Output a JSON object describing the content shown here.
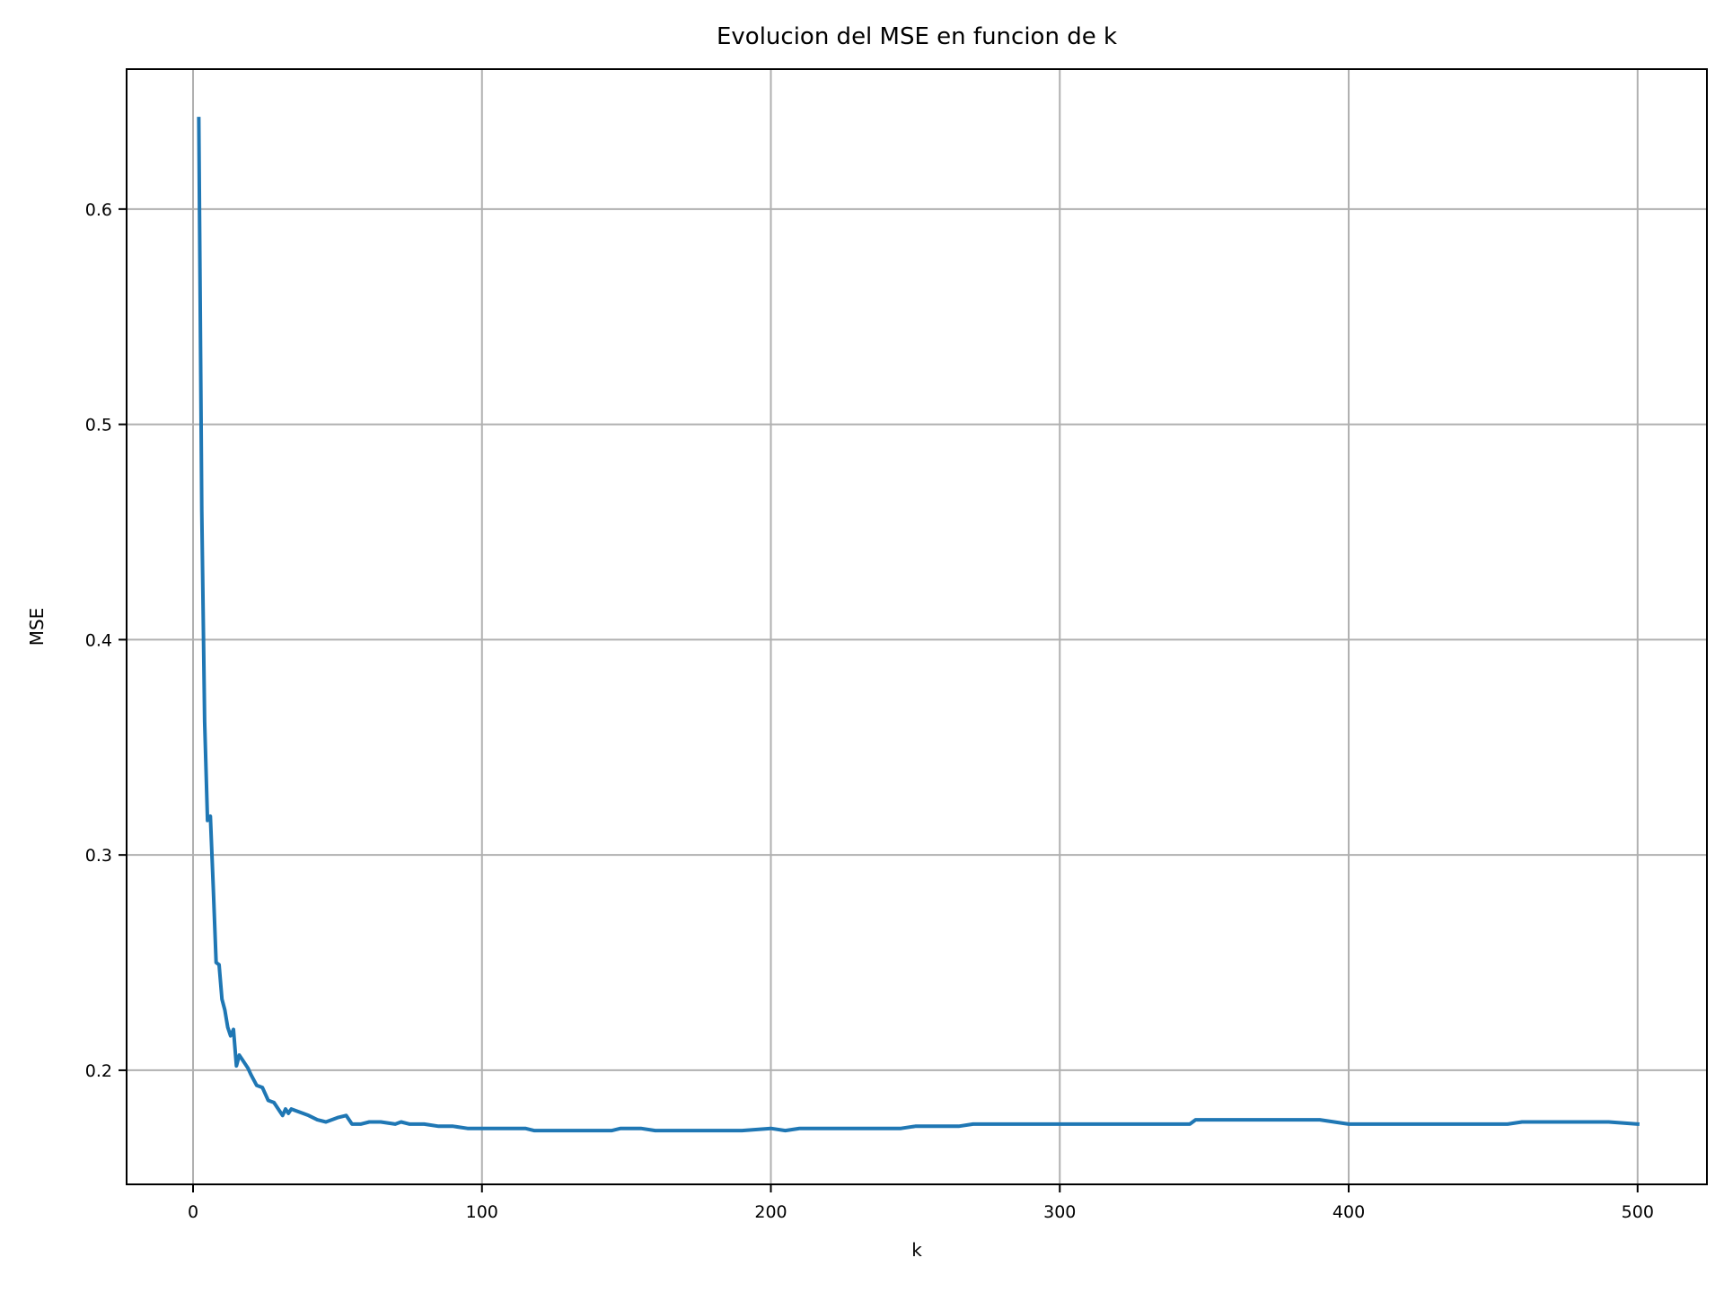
{
  "chart_data": {
    "type": "line",
    "title": "Evolucion del MSE en funcion de k",
    "xlabel": "k",
    "ylabel": "MSE",
    "xlim": [
      -23,
      524
    ],
    "ylim": [
      0.147,
      0.665
    ],
    "xticks": [
      0,
      100,
      200,
      300,
      400,
      500
    ],
    "yticks": [
      0.2,
      0.3,
      0.4,
      0.5,
      0.6
    ],
    "xtick_labels": [
      "0",
      "100",
      "200",
      "300",
      "400",
      "500"
    ],
    "ytick_labels": [
      "0.2",
      "0.3",
      "0.4",
      "0.5",
      "0.6"
    ],
    "grid": true,
    "legend": "none",
    "line_color": "#1f77b4",
    "grid_color": "#b0b0b0",
    "series": [
      {
        "x": [
          2,
          3,
          4,
          5,
          6,
          7,
          8,
          9,
          10,
          11,
          12,
          13,
          14,
          15,
          16,
          17,
          18,
          19,
          20,
          22,
          24,
          26,
          28,
          30,
          31,
          32,
          33,
          34,
          36,
          38,
          40,
          43,
          46,
          50,
          53,
          55,
          58,
          61,
          65,
          70,
          72,
          75,
          80,
          85,
          90,
          95,
          100,
          105,
          110,
          115,
          118,
          120,
          125,
          130,
          135,
          140,
          145,
          148,
          150,
          155,
          160,
          170,
          180,
          190,
          200,
          205,
          210,
          220,
          225,
          230,
          240,
          245,
          250,
          260,
          265,
          270,
          275,
          280,
          285,
          290,
          300,
          310,
          320,
          330,
          340,
          345,
          347,
          350,
          360,
          370,
          380,
          385,
          390,
          395,
          400,
          410,
          420,
          430,
          440,
          450,
          455,
          460,
          470,
          475,
          480,
          490,
          500
        ],
        "y": [
          0.642,
          0.46,
          0.362,
          0.316,
          0.318,
          0.285,
          0.25,
          0.249,
          0.233,
          0.228,
          0.22,
          0.216,
          0.219,
          0.202,
          0.207,
          0.205,
          0.203,
          0.201,
          0.198,
          0.193,
          0.192,
          0.186,
          0.185,
          0.181,
          0.179,
          0.182,
          0.18,
          0.182,
          0.181,
          0.18,
          0.179,
          0.177,
          0.176,
          0.178,
          0.179,
          0.175,
          0.175,
          0.176,
          0.176,
          0.175,
          0.176,
          0.175,
          0.175,
          0.174,
          0.174,
          0.173,
          0.173,
          0.173,
          0.173,
          0.173,
          0.172,
          0.172,
          0.172,
          0.172,
          0.172,
          0.172,
          0.172,
          0.173,
          0.173,
          0.173,
          0.172,
          0.172,
          0.172,
          0.172,
          0.173,
          0.172,
          0.173,
          0.173,
          0.173,
          0.173,
          0.173,
          0.173,
          0.174,
          0.174,
          0.174,
          0.175,
          0.175,
          0.175,
          0.175,
          0.175,
          0.175,
          0.175,
          0.175,
          0.175,
          0.175,
          0.175,
          0.177,
          0.177,
          0.177,
          0.177,
          0.177,
          0.177,
          0.177,
          0.176,
          0.175,
          0.175,
          0.175,
          0.175,
          0.175,
          0.175,
          0.175,
          0.176,
          0.176,
          0.176,
          0.176,
          0.176,
          0.175
        ]
      }
    ]
  }
}
